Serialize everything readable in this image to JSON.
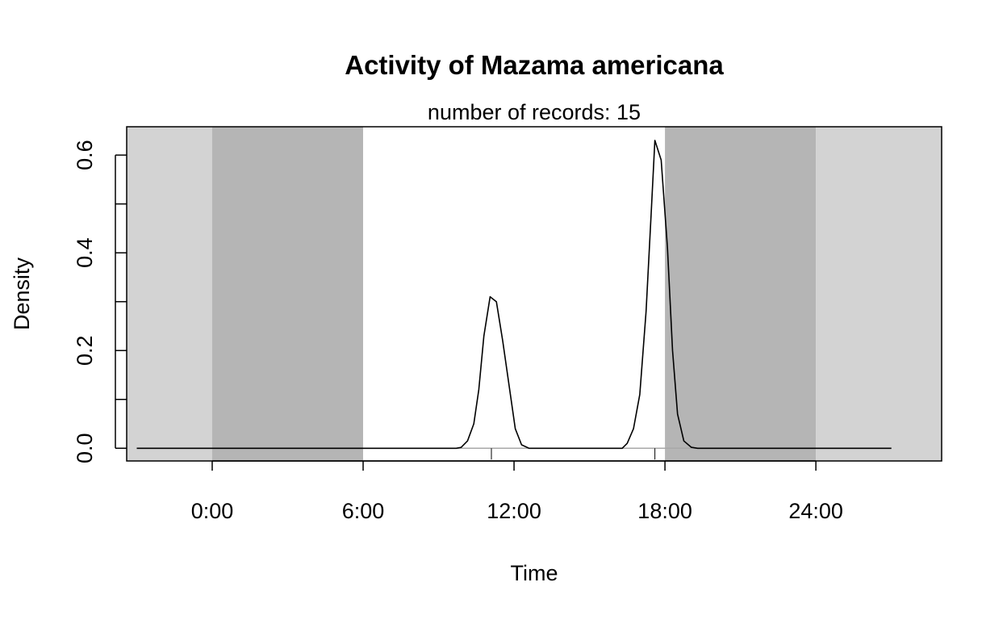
{
  "chart_data": {
    "type": "area",
    "title": "Activity of Mazama americana",
    "subtitle": "number of records: 15",
    "xlabel": "Time",
    "ylabel": "Density",
    "xlim": [
      -3.4,
      29.0
    ],
    "ylim": [
      -0.026,
      0.658
    ],
    "x_ticks": [
      {
        "value": 0,
        "label": "0:00"
      },
      {
        "value": 6,
        "label": "6:00"
      },
      {
        "value": 12,
        "label": "12:00"
      },
      {
        "value": 18,
        "label": "18:00"
      },
      {
        "value": 24,
        "label": "24:00"
      }
    ],
    "y_ticks": [
      {
        "value": 0.0,
        "label": "0.0"
      },
      {
        "value": 0.2,
        "label": "0.2"
      },
      {
        "value": 0.4,
        "label": "0.4"
      },
      {
        "value": 0.6,
        "label": "0.6"
      }
    ],
    "y_minor_ticks": [
      0.1,
      0.3,
      0.5
    ],
    "shading": [
      {
        "from": -3.4,
        "to": 0,
        "color": "#d3d3d3"
      },
      {
        "from": 0,
        "to": 6,
        "color": "#b5b5b5"
      },
      {
        "from": 6,
        "to": 18,
        "color": "#ffffff"
      },
      {
        "from": 18,
        "to": 24,
        "color": "#b5b5b5"
      },
      {
        "from": 24,
        "to": 29.0,
        "color": "#d3d3d3"
      }
    ],
    "rug": [
      11.1,
      17.6
    ],
    "series": [
      {
        "points": [
          [
            -3.0,
            0
          ],
          [
            9.7,
            0
          ],
          [
            9.9,
            0.002
          ],
          [
            10.15,
            0.015
          ],
          [
            10.4,
            0.05
          ],
          [
            10.6,
            0.12
          ],
          [
            10.8,
            0.23
          ],
          [
            11.05,
            0.31
          ],
          [
            11.3,
            0.3
          ],
          [
            11.55,
            0.22
          ],
          [
            11.8,
            0.13
          ],
          [
            12.05,
            0.04
          ],
          [
            12.3,
            0.007
          ],
          [
            12.6,
            0
          ],
          [
            16.3,
            0
          ],
          [
            16.5,
            0.01
          ],
          [
            16.75,
            0.04
          ],
          [
            17.0,
            0.11
          ],
          [
            17.25,
            0.28
          ],
          [
            17.45,
            0.48
          ],
          [
            17.6,
            0.63
          ],
          [
            17.85,
            0.59
          ],
          [
            18.1,
            0.41
          ],
          [
            18.3,
            0.2
          ],
          [
            18.5,
            0.07
          ],
          [
            18.75,
            0.015
          ],
          [
            19.05,
            0.002
          ],
          [
            19.3,
            0
          ],
          [
            27.0,
            0
          ]
        ]
      }
    ]
  }
}
